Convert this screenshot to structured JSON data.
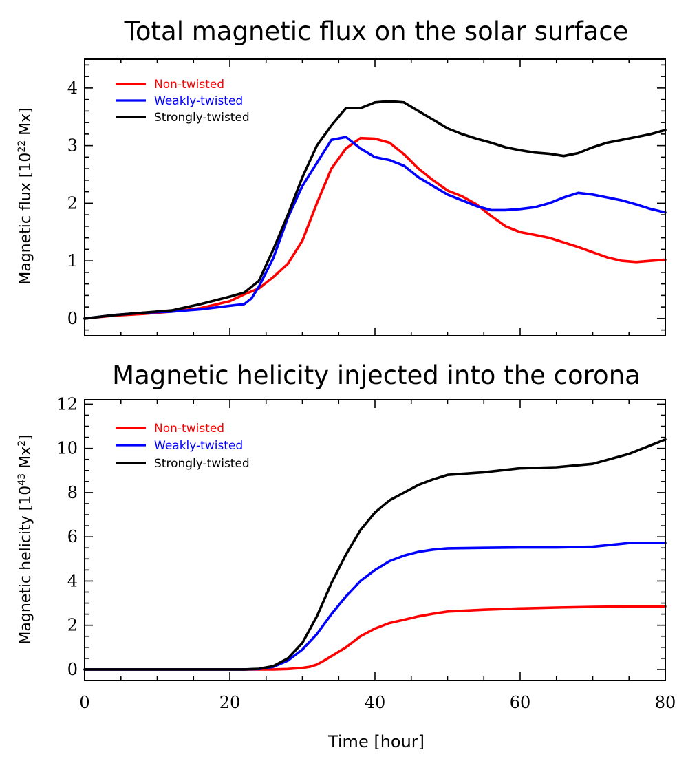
{
  "chart_data": [
    {
      "type": "line",
      "title": "Total magnetic flux on the solar surface",
      "ylabel_main": "Magnetic flux [10",
      "ylabel_sup": "22",
      "ylabel_end": " Mx]",
      "xlim": [
        0,
        80
      ],
      "ylim": [
        -0.3,
        4.5
      ],
      "y_major_ticks": [
        0,
        1,
        2,
        3,
        4
      ],
      "y_tick_labels": [
        "0",
        "1",
        "2",
        "3",
        "4"
      ],
      "x_major_ticks": [
        0,
        20,
        40,
        60,
        80
      ],
      "x_tick_labels": [],
      "legend_position": "top-left",
      "series": [
        {
          "name": "Non-twisted",
          "color": "#ff0000",
          "x": [
            0,
            4,
            8,
            12,
            16,
            20,
            22,
            24,
            26,
            28,
            30,
            32,
            34,
            36,
            38,
            40,
            42,
            44,
            46,
            48,
            50,
            52,
            54,
            56,
            58,
            60,
            62,
            64,
            66,
            68,
            70,
            72,
            74,
            76,
            78,
            80
          ],
          "y": [
            0.0,
            0.05,
            0.08,
            0.12,
            0.18,
            0.3,
            0.42,
            0.52,
            0.72,
            0.95,
            1.35,
            2.0,
            2.6,
            2.95,
            3.13,
            3.12,
            3.05,
            2.85,
            2.6,
            2.4,
            2.22,
            2.12,
            1.98,
            1.78,
            1.6,
            1.5,
            1.45,
            1.4,
            1.32,
            1.24,
            1.15,
            1.06,
            1.0,
            0.98,
            1.0,
            1.02
          ]
        },
        {
          "name": "Weakly-twisted",
          "color": "#0000ff",
          "x": [
            0,
            4,
            8,
            12,
            16,
            20,
            22,
            23,
            24,
            26,
            28,
            30,
            32,
            34,
            36,
            38,
            40,
            42,
            44,
            46,
            48,
            50,
            52,
            54,
            56,
            58,
            60,
            62,
            64,
            66,
            68,
            70,
            72,
            74,
            76,
            78,
            80
          ],
          "y": [
            0.0,
            0.06,
            0.1,
            0.12,
            0.16,
            0.22,
            0.25,
            0.35,
            0.55,
            1.05,
            1.75,
            2.3,
            2.7,
            3.1,
            3.15,
            2.95,
            2.8,
            2.75,
            2.65,
            2.45,
            2.3,
            2.15,
            2.05,
            1.95,
            1.88,
            1.88,
            1.9,
            1.93,
            2.0,
            2.1,
            2.18,
            2.15,
            2.1,
            2.05,
            1.98,
            1.9,
            1.84
          ]
        },
        {
          "name": "Strongly-twisted",
          "color": "#000000",
          "x": [
            0,
            4,
            8,
            12,
            16,
            20,
            22,
            24,
            26,
            28,
            30,
            32,
            34,
            36,
            38,
            40,
            42,
            44,
            46,
            48,
            50,
            52,
            54,
            56,
            58,
            60,
            62,
            64,
            66,
            68,
            70,
            72,
            74,
            76,
            78,
            80
          ],
          "y": [
            0.0,
            0.06,
            0.1,
            0.14,
            0.25,
            0.38,
            0.45,
            0.65,
            1.2,
            1.8,
            2.45,
            3.0,
            3.35,
            3.65,
            3.65,
            3.75,
            3.77,
            3.75,
            3.6,
            3.45,
            3.3,
            3.2,
            3.12,
            3.05,
            2.97,
            2.92,
            2.88,
            2.86,
            2.82,
            2.87,
            2.97,
            3.05,
            3.1,
            3.15,
            3.2,
            3.27
          ]
        }
      ]
    },
    {
      "type": "line",
      "title": "Magnetic helicity injected into the corona",
      "ylabel_main": "Magnetic helicity [10",
      "ylabel_sup": "43",
      "ylabel_mid": " Mx",
      "ylabel_sup2": "2",
      "ylabel_end": "]",
      "xlabel": "Time [hour]",
      "xlim": [
        0,
        80
      ],
      "ylim": [
        -0.5,
        12.2
      ],
      "y_major_ticks": [
        0,
        2,
        4,
        6,
        8,
        10,
        12
      ],
      "y_tick_labels": [
        "0",
        "2",
        "4",
        "6",
        "8",
        "10",
        "12"
      ],
      "x_major_ticks": [
        0,
        20,
        40,
        60,
        80
      ],
      "x_tick_labels": [
        "0",
        "20",
        "40",
        "60",
        "80"
      ],
      "legend_position": "top-left",
      "series": [
        {
          "name": "Non-twisted",
          "color": "#ff0000",
          "x": [
            0,
            10,
            20,
            26,
            28,
            30,
            31,
            32,
            33,
            34,
            36,
            38,
            40,
            42,
            44,
            46,
            48,
            50,
            55,
            60,
            65,
            70,
            75,
            80
          ],
          "y": [
            0,
            0,
            0,
            0,
            0.02,
            0.07,
            0.12,
            0.22,
            0.4,
            0.6,
            1.0,
            1.5,
            1.85,
            2.1,
            2.25,
            2.4,
            2.52,
            2.62,
            2.7,
            2.76,
            2.8,
            2.83,
            2.85,
            2.85
          ]
        },
        {
          "name": "Weakly-twisted",
          "color": "#0000ff",
          "x": [
            0,
            10,
            20,
            22,
            24,
            26,
            28,
            30,
            32,
            34,
            36,
            38,
            40,
            42,
            44,
            46,
            48,
            50,
            55,
            60,
            65,
            70,
            75,
            80
          ],
          "y": [
            0,
            0,
            0,
            0,
            0.02,
            0.12,
            0.4,
            0.9,
            1.6,
            2.5,
            3.3,
            4.0,
            4.5,
            4.9,
            5.15,
            5.32,
            5.42,
            5.48,
            5.5,
            5.52,
            5.52,
            5.55,
            5.72,
            5.72
          ]
        },
        {
          "name": "Strongly-twisted",
          "color": "#000000",
          "x": [
            0,
            10,
            20,
            22,
            24,
            26,
            28,
            30,
            32,
            34,
            36,
            38,
            40,
            42,
            44,
            46,
            48,
            50,
            55,
            60,
            65,
            70,
            75,
            80
          ],
          "y": [
            0,
            0,
            0,
            0,
            0.03,
            0.15,
            0.5,
            1.2,
            2.4,
            3.9,
            5.2,
            6.3,
            7.1,
            7.65,
            8.0,
            8.35,
            8.6,
            8.8,
            8.92,
            9.1,
            9.15,
            9.3,
            9.75,
            10.4
          ]
        }
      ]
    }
  ]
}
